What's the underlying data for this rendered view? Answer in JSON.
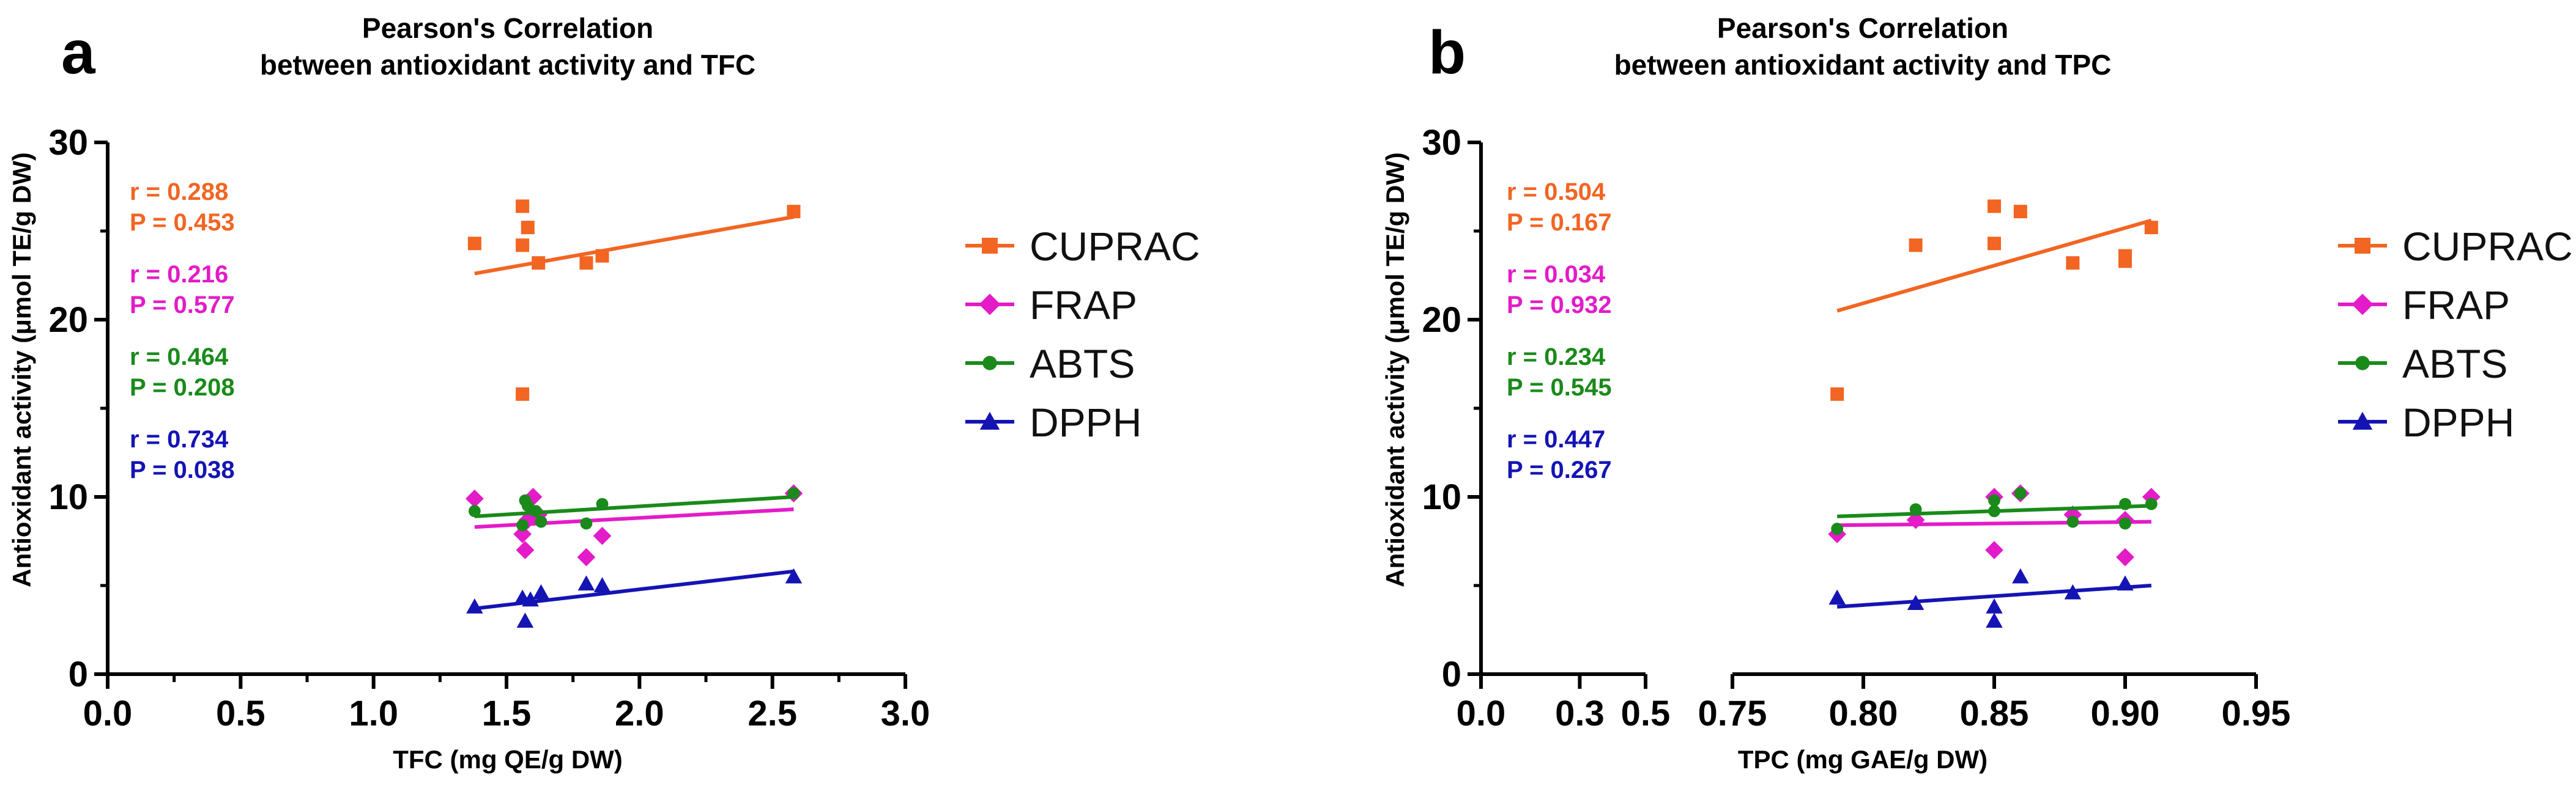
{
  "colors": {
    "CUPRAC": "#f26522",
    "FRAP": "#e31bc8",
    "ABTS": "#1a8a1a",
    "DPPH": "#1414b4",
    "axis": "#000000"
  },
  "legend": {
    "labels": [
      "CUPRAC",
      "FRAP",
      "ABTS",
      "DPPH"
    ],
    "markers": [
      "square",
      "diamond",
      "circle",
      "triangle"
    ]
  },
  "chart_data": [
    {
      "type": "scatter",
      "panel_label": "a",
      "title": "Pearson's Correlation",
      "subtitle": "between antioxidant activity and TFC",
      "xlabel": "TFC (mg QE/g DW)",
      "ylabel": "Antioxidant activity (μmol TE/g DW)",
      "xlim": [
        0,
        3
      ],
      "ylim": [
        0,
        30
      ],
      "x_ticks": [
        "0.0",
        "0.5",
        "1.0",
        "1.5",
        "2.0",
        "2.5",
        "3.0"
      ],
      "y_ticks": [
        "0",
        "10",
        "20",
        "30"
      ],
      "stats": [
        {
          "series": "CUPRAC",
          "r": "r = 0.288",
          "p": "P = 0.453"
        },
        {
          "series": "FRAP",
          "r": "r = 0.216",
          "p": "P = 0.577"
        },
        {
          "series": "ABTS",
          "r": "r = 0.464",
          "p": "P = 0.208"
        },
        {
          "series": "DPPH",
          "r": "r = 0.734",
          "p": "P = 0.038"
        }
      ],
      "series": [
        {
          "name": "CUPRAC",
          "marker": "square",
          "points": [
            [
              1.38,
              24.3
            ],
            [
              1.56,
              26.4
            ],
            [
              1.56,
              24.2
            ],
            [
              1.58,
              25.2
            ],
            [
              1.62,
              23.2
            ],
            [
              1.8,
              23.2
            ],
            [
              1.86,
              23.6
            ],
            [
              2.58,
              26.1
            ],
            [
              1.56,
              15.8
            ]
          ],
          "fit": [
            [
              1.38,
              22.6
            ],
            [
              2.58,
              25.8
            ]
          ]
        },
        {
          "name": "FRAP",
          "marker": "diamond",
          "points": [
            [
              1.38,
              9.9
            ],
            [
              1.56,
              7.9
            ],
            [
              1.57,
              7.0
            ],
            [
              1.58,
              8.7
            ],
            [
              1.6,
              10.0
            ],
            [
              1.62,
              9.0
            ],
            [
              1.8,
              6.6
            ],
            [
              1.86,
              7.8
            ],
            [
              2.58,
              10.2
            ]
          ],
          "fit": [
            [
              1.38,
              8.3
            ],
            [
              2.58,
              9.3
            ]
          ]
        },
        {
          "name": "ABTS",
          "marker": "circle",
          "points": [
            [
              1.38,
              9.2
            ],
            [
              1.56,
              8.4
            ],
            [
              1.57,
              9.8
            ],
            [
              1.58,
              9.5
            ],
            [
              1.61,
              9.2
            ],
            [
              1.63,
              8.6
            ],
            [
              1.8,
              8.5
            ],
            [
              1.86,
              9.6
            ],
            [
              2.58,
              10.2
            ]
          ],
          "fit": [
            [
              1.38,
              8.9
            ],
            [
              2.58,
              10.0
            ]
          ]
        },
        {
          "name": "DPPH",
          "marker": "triangle",
          "points": [
            [
              1.38,
              3.8
            ],
            [
              1.56,
              4.3
            ],
            [
              1.57,
              3.0
            ],
            [
              1.59,
              4.2
            ],
            [
              1.63,
              4.6
            ],
            [
              1.8,
              5.1
            ],
            [
              1.86,
              5.0
            ],
            [
              2.58,
              5.5
            ]
          ],
          "fit": [
            [
              1.38,
              3.7
            ],
            [
              2.58,
              5.8
            ]
          ]
        }
      ]
    },
    {
      "type": "scatter",
      "panel_label": "b",
      "title": "Pearson's Correlation",
      "subtitle": "between antioxidant activity and TPC",
      "xlabel": "TPC (mg GAE/g DW)",
      "ylabel": "Antioxidant activity (μmol TE/g DW)",
      "x_axis_break": {
        "segment1": [
          0,
          0.5
        ],
        "segment2": [
          0.75,
          0.95
        ]
      },
      "ylim": [
        0,
        30
      ],
      "x_ticks_segment1": [
        "0.0",
        "0.3",
        "0.5"
      ],
      "x_ticks_segment2": [
        "0.75",
        "0.80",
        "0.85",
        "0.90",
        "0.95"
      ],
      "y_ticks": [
        "0",
        "10",
        "20",
        "30"
      ],
      "stats": [
        {
          "series": "CUPRAC",
          "r": "r = 0.504",
          "p": "P = 0.167"
        },
        {
          "series": "FRAP",
          "r": "r = 0.034",
          "p": "P = 0.932"
        },
        {
          "series": "ABTS",
          "r": "r = 0.234",
          "p": "P = 0.545"
        },
        {
          "series": "DPPH",
          "r": "r = 0.447",
          "p": "P = 0.267"
        }
      ],
      "series": [
        {
          "name": "CUPRAC",
          "marker": "square",
          "points": [
            [
              0.79,
              15.8
            ],
            [
              0.82,
              24.2
            ],
            [
              0.85,
              26.4
            ],
            [
              0.85,
              24.3
            ],
            [
              0.86,
              26.1
            ],
            [
              0.88,
              23.2
            ],
            [
              0.9,
              23.3
            ],
            [
              0.9,
              23.6
            ],
            [
              0.91,
              25.2
            ]
          ],
          "fit": [
            [
              0.79,
              20.5
            ],
            [
              0.91,
              25.6
            ]
          ]
        },
        {
          "name": "FRAP",
          "marker": "diamond",
          "points": [
            [
              0.79,
              7.9
            ],
            [
              0.82,
              8.7
            ],
            [
              0.85,
              10.0
            ],
            [
              0.85,
              7.0
            ],
            [
              0.86,
              10.2
            ],
            [
              0.88,
              9.0
            ],
            [
              0.9,
              8.7
            ],
            [
              0.9,
              6.6
            ],
            [
              0.91,
              10.0
            ]
          ],
          "fit": [
            [
              0.79,
              8.4
            ],
            [
              0.91,
              8.6
            ]
          ]
        },
        {
          "name": "ABTS",
          "marker": "circle",
          "points": [
            [
              0.79,
              8.2
            ],
            [
              0.82,
              9.3
            ],
            [
              0.85,
              9.2
            ],
            [
              0.85,
              9.8
            ],
            [
              0.86,
              10.2
            ],
            [
              0.88,
              8.6
            ],
            [
              0.9,
              9.6
            ],
            [
              0.9,
              8.5
            ],
            [
              0.91,
              9.6
            ]
          ],
          "fit": [
            [
              0.79,
              8.9
            ],
            [
              0.91,
              9.5
            ]
          ]
        },
        {
          "name": "DPPH",
          "marker": "triangle",
          "points": [
            [
              0.79,
              4.3
            ],
            [
              0.82,
              4.0
            ],
            [
              0.85,
              3.8
            ],
            [
              0.85,
              3.0
            ],
            [
              0.86,
              5.5
            ],
            [
              0.88,
              4.6
            ],
            [
              0.9,
              5.1
            ]
          ],
          "fit": [
            [
              0.79,
              3.8
            ],
            [
              0.91,
              5.0
            ]
          ]
        }
      ]
    }
  ]
}
